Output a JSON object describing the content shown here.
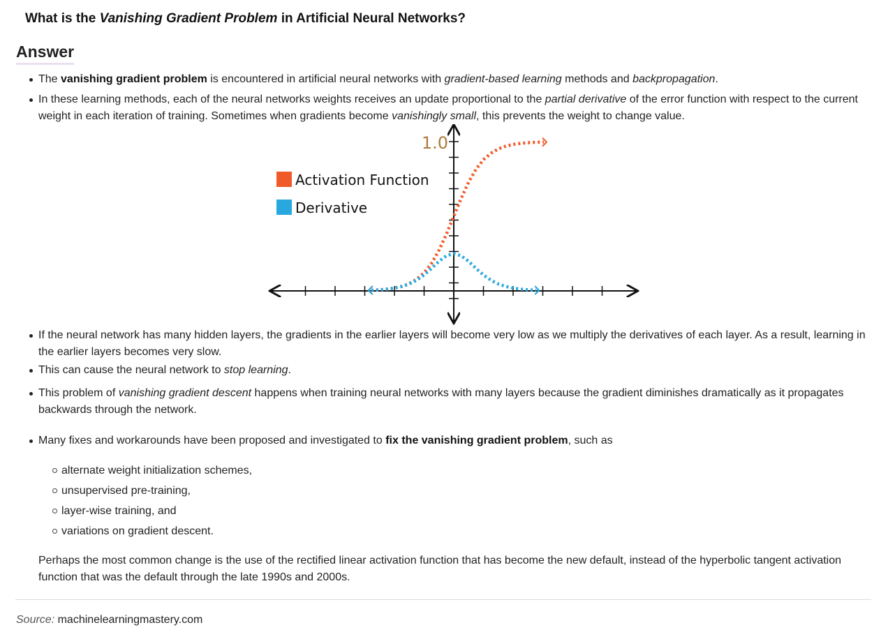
{
  "question": {
    "before": "What is the ",
    "emphasis": "Vanishing Gradient Problem",
    "after": " in Artificial Neural Networks?"
  },
  "answer_heading": "Answer",
  "bullets_top": {
    "b1": {
      "t1": "The ",
      "bold": "vanishing gradient problem",
      "t2": " is encountered in artificial neural networks with ",
      "it1": "gradient-based learning",
      "t3": " methods and ",
      "it2": "backpropagation",
      "t4": "."
    },
    "b2": {
      "t1": "In these learning methods, each of the neural networks weights receives an update proportional to the ",
      "it1": "partial derivative",
      "t2": " of the error function with respect to the current weight in each iteration of training. Sometimes when gradients become ",
      "it2": "vanishingly small",
      "t3": ", this prevents the weight to change value."
    }
  },
  "chart_data": {
    "type": "line",
    "title": "",
    "xlabel": "",
    "ylabel": "",
    "y_tick_label": "1.0",
    "xlim": [
      -6,
      6
    ],
    "ylim": [
      -0.1,
      1.0
    ],
    "series": [
      {
        "name": "Activation Function",
        "color": "#f05a28",
        "x": [
          -5.5,
          -5,
          -4.5,
          -4,
          -3.5,
          -3,
          -2.5,
          -2,
          -1.5,
          -1,
          -0.5,
          0,
          0.5,
          1,
          1.5,
          2,
          2.5,
          3,
          3.5,
          4,
          4.5,
          5,
          5.5,
          6
        ],
        "values": [
          0.004,
          0.007,
          0.011,
          0.018,
          0.029,
          0.047,
          0.076,
          0.119,
          0.182,
          0.269,
          0.378,
          0.5,
          0.622,
          0.731,
          0.818,
          0.881,
          0.924,
          0.953,
          0.971,
          0.982,
          0.989,
          0.993,
          0.996,
          0.997
        ]
      },
      {
        "name": "Derivative",
        "color": "#29a8e0",
        "x": [
          -5.5,
          -5,
          -4.5,
          -4,
          -3.5,
          -3,
          -2.5,
          -2,
          -1.5,
          -1,
          -0.5,
          0,
          0.5,
          1,
          1.5,
          2,
          2.5,
          3,
          3.5,
          4,
          4.5,
          5,
          5.5
        ],
        "values": [
          0.004,
          0.007,
          0.011,
          0.018,
          0.029,
          0.045,
          0.07,
          0.105,
          0.149,
          0.197,
          0.235,
          0.25,
          0.235,
          0.197,
          0.149,
          0.105,
          0.07,
          0.045,
          0.029,
          0.018,
          0.011,
          0.007,
          0.004
        ]
      }
    ],
    "legend": "top-left"
  },
  "bullets_bottom": {
    "b3": "If the neural network has many hidden layers, the gradients in the earlier layers will become very low as we multiply the derivatives of each layer. As a result, learning in the earlier layers becomes very slow.",
    "b4": {
      "t1": "This can cause the neural network to ",
      "it1": "stop learning",
      "t2": "."
    },
    "b5": {
      "t1": "This problem of ",
      "it1": "vanishing gradient descent",
      "t2": " happens when training neural networks with many layers because the gradient diminishes dramatically as it propagates backwards through the network."
    },
    "b6": {
      "t1": "Many fixes and workarounds have been proposed and investigated to ",
      "bold": "fix the vanishing gradient problem",
      "t2": ", such as"
    }
  },
  "fixes": [
    "alternate weight initialization schemes,",
    "unsupervised pre-training,",
    "layer-wise training, and",
    "variations on gradient descent."
  ],
  "closing": "Perhaps the most common change is the use of the rectified linear activation function that has become the new default, instead of the hyperbolic tangent activation function that was the default through the late 1990s and 2000s.",
  "source": {
    "label": "Source:",
    "site": "machinelearningmastery.com"
  }
}
